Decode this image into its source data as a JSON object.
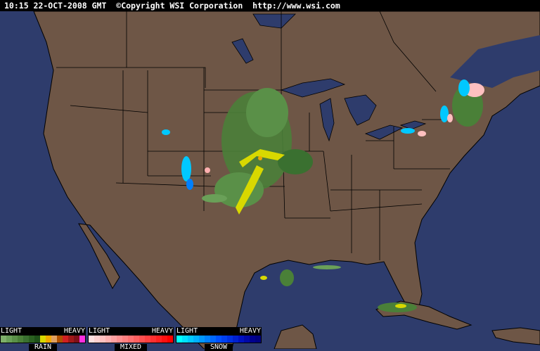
{
  "header": {
    "timestamp": "10:15 22-OCT-2008 GMT",
    "copyright": "©Copyright WSI Corporation",
    "url": "http://www.wsi.com"
  },
  "colors": {
    "ocean": "#2e3c6c",
    "land": "#6e5646",
    "borders": "#000000",
    "lakes": "#2e3c6c"
  },
  "legend": [
    {
      "name": "RAIN",
      "light": "LIGHT",
      "heavy": "HEAVY",
      "colors": [
        "#7fb06a",
        "#6aa058",
        "#5a9048",
        "#4a8038",
        "#3a7030",
        "#2a6020",
        "#1e5018",
        "#d8d800",
        "#f0a800",
        "#e0a060",
        "#b05000",
        "#d02020",
        "#a01818",
        "#801018",
        "#ff30e0"
      ]
    },
    {
      "name": "MIXED",
      "light": "LIGHT",
      "heavy": "HEAVY",
      "colors": [
        "#ffe0e0",
        "#ffd0d0",
        "#ffc0c0",
        "#ffb0b0",
        "#ffa0a0",
        "#ff9090",
        "#ff8080",
        "#ff7070",
        "#ff6060",
        "#ff5050",
        "#ff4040",
        "#ff3030",
        "#ff2020",
        "#ff1010",
        "#ff0000"
      ]
    },
    {
      "name": "SNOW",
      "light": "LIGHT",
      "heavy": "HEAVY",
      "colors": [
        "#00ffff",
        "#00e0ff",
        "#00c8ff",
        "#00b0ff",
        "#0098ff",
        "#0080ff",
        "#0068ff",
        "#0050ff",
        "#0040f0",
        "#0030e0",
        "#0020d0",
        "#0010c0",
        "#0008a8",
        "#000090",
        "#000080"
      ]
    }
  ]
}
